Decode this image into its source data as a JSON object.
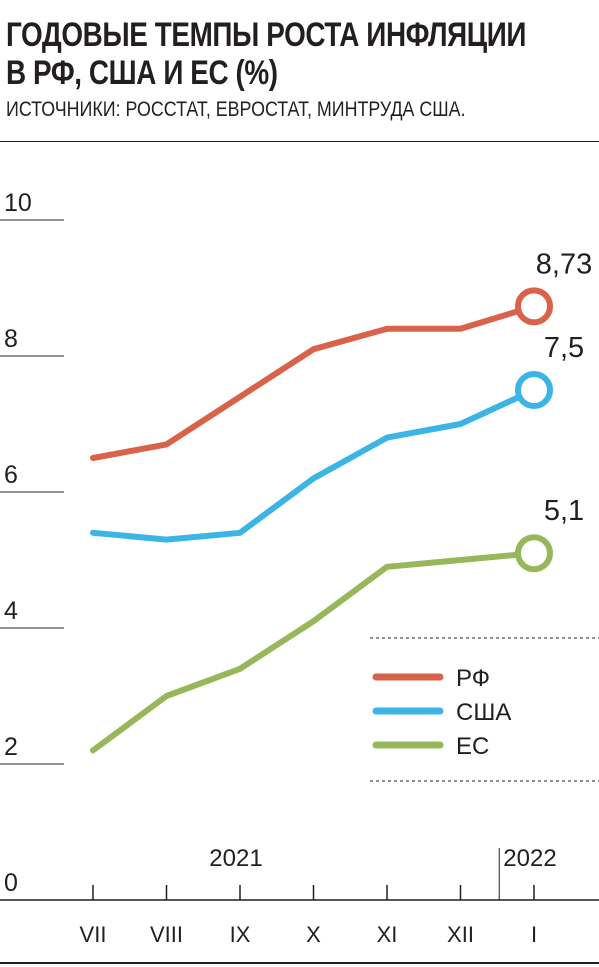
{
  "header": {
    "title_line1": "ГОДОВЫЕ ТЕМПЫ РОСТА ИНФЛЯЦИИ",
    "title_line2": "В РФ, США И ЕС (%)",
    "subtitle": "ИСТОЧНИКИ: РОССТАТ, ЕВРОСТАТ, МИНТРУДА США."
  },
  "chart_data": {
    "type": "line",
    "title": "ГОДОВЫЕ ТЕМПЫ РОСТА ИНФЛЯЦИИ В РФ, США И ЕС (%)",
    "x": [
      "VII",
      "VIII",
      "IX",
      "X",
      "XI",
      "XII",
      "I"
    ],
    "year_labels": [
      {
        "text": "2021",
        "at": "IX"
      },
      {
        "text": "2022",
        "at": "I"
      }
    ],
    "y_ticks": [
      10,
      8,
      6,
      4,
      2,
      0
    ],
    "ylim": [
      0,
      10
    ],
    "grid": false,
    "legend_position": "lower-right",
    "series": [
      {
        "name": "РФ",
        "color": "#d9634a",
        "values": [
          6.5,
          6.7,
          7.4,
          8.1,
          8.4,
          8.4,
          8.73
        ],
        "end_label": "8,73"
      },
      {
        "name": "США",
        "color": "#3cb4e5",
        "values": [
          5.4,
          5.3,
          5.4,
          6.2,
          6.8,
          7.0,
          7.5
        ],
        "end_label": "7,5"
      },
      {
        "name": "ЕС",
        "color": "#97b85a",
        "values": [
          2.2,
          3.0,
          3.4,
          4.1,
          4.9,
          5.0,
          5.1
        ],
        "end_label": "5,1"
      }
    ]
  }
}
